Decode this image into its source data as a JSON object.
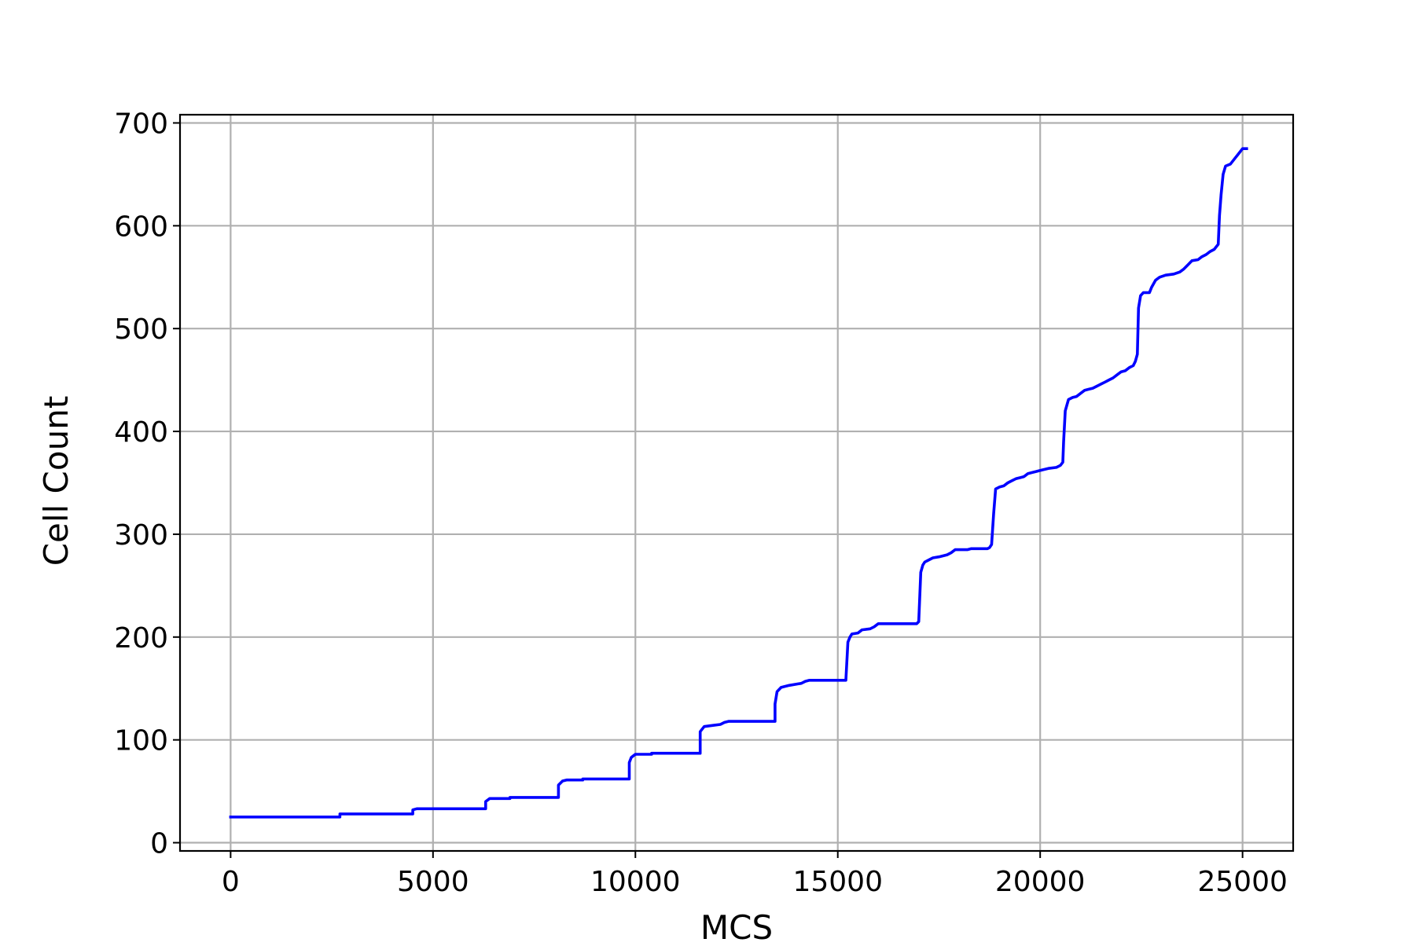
{
  "chart_data": {
    "type": "line",
    "title": "",
    "xlabel": "MCS",
    "ylabel": "Cell Count",
    "xlim": [
      -1250,
      26250
    ],
    "ylim": [
      -8,
      708
    ],
    "xticks": [
      0,
      5000,
      10000,
      15000,
      20000,
      25000
    ],
    "yticks": [
      0,
      100,
      200,
      300,
      400,
      500,
      600,
      700
    ],
    "grid": true,
    "legend": "none",
    "series": [
      {
        "color": "#0000ff",
        "step": true,
        "points": [
          [
            0,
            25
          ],
          [
            2700,
            25
          ],
          [
            2700,
            28
          ],
          [
            4500,
            28
          ],
          [
            4500,
            32
          ],
          [
            4600,
            33
          ],
          [
            6300,
            33
          ],
          [
            6300,
            40
          ],
          [
            6400,
            43
          ],
          [
            6900,
            43
          ],
          [
            6900,
            44
          ],
          [
            8100,
            44
          ],
          [
            8100,
            56
          ],
          [
            8200,
            60
          ],
          [
            8300,
            61
          ],
          [
            8700,
            61
          ],
          [
            8700,
            62
          ],
          [
            9850,
            62
          ],
          [
            9850,
            78
          ],
          [
            9900,
            83
          ],
          [
            10000,
            86
          ],
          [
            10400,
            86
          ],
          [
            10400,
            87
          ],
          [
            11600,
            87
          ],
          [
            11600,
            108
          ],
          [
            11700,
            113
          ],
          [
            11900,
            114
          ],
          [
            12100,
            115
          ],
          [
            12200,
            117
          ],
          [
            12300,
            118
          ],
          [
            13450,
            118
          ],
          [
            13450,
            135
          ],
          [
            13500,
            147
          ],
          [
            13600,
            151
          ],
          [
            13800,
            153
          ],
          [
            14100,
            155
          ],
          [
            14200,
            157
          ],
          [
            14300,
            158
          ],
          [
            15200,
            158
          ],
          [
            15250,
            195
          ],
          [
            15300,
            200
          ],
          [
            15350,
            203
          ],
          [
            15500,
            204
          ],
          [
            15600,
            207
          ],
          [
            15800,
            208
          ],
          [
            15900,
            210
          ],
          [
            16000,
            213
          ],
          [
            16950,
            213
          ],
          [
            17000,
            215
          ],
          [
            17050,
            263
          ],
          [
            17100,
            270
          ],
          [
            17150,
            273
          ],
          [
            17250,
            275
          ],
          [
            17350,
            277
          ],
          [
            17500,
            278
          ],
          [
            17700,
            280
          ],
          [
            17800,
            282
          ],
          [
            17900,
            285
          ],
          [
            18200,
            285
          ],
          [
            18300,
            286
          ],
          [
            18700,
            286
          ],
          [
            18750,
            287
          ],
          [
            18800,
            290
          ],
          [
            18850,
            320
          ],
          [
            18900,
            344
          ],
          [
            19000,
            346
          ],
          [
            19100,
            347
          ],
          [
            19200,
            350
          ],
          [
            19300,
            352
          ],
          [
            19400,
            354
          ],
          [
            19500,
            355
          ],
          [
            19600,
            356
          ],
          [
            19700,
            359
          ],
          [
            19800,
            360
          ],
          [
            19900,
            361
          ],
          [
            20000,
            362
          ],
          [
            20100,
            363
          ],
          [
            20200,
            364
          ],
          [
            20400,
            365
          ],
          [
            20500,
            367
          ],
          [
            20560,
            370
          ],
          [
            20580,
            390
          ],
          [
            20620,
            420
          ],
          [
            20700,
            431
          ],
          [
            20800,
            433
          ],
          [
            20900,
            434
          ],
          [
            21000,
            437
          ],
          [
            21100,
            440
          ],
          [
            21200,
            441
          ],
          [
            21300,
            442
          ],
          [
            21400,
            444
          ],
          [
            21500,
            446
          ],
          [
            21600,
            448
          ],
          [
            21700,
            450
          ],
          [
            21800,
            452
          ],
          [
            21900,
            455
          ],
          [
            22000,
            458
          ],
          [
            22100,
            459
          ],
          [
            22200,
            462
          ],
          [
            22300,
            464
          ],
          [
            22350,
            468
          ],
          [
            22400,
            475
          ],
          [
            22430,
            520
          ],
          [
            22480,
            532
          ],
          [
            22550,
            535
          ],
          [
            22700,
            535
          ],
          [
            22750,
            540
          ],
          [
            22850,
            547
          ],
          [
            22950,
            550
          ],
          [
            23100,
            552
          ],
          [
            23300,
            553
          ],
          [
            23450,
            555
          ],
          [
            23550,
            558
          ],
          [
            23650,
            562
          ],
          [
            23750,
            566
          ],
          [
            23900,
            567
          ],
          [
            24000,
            570
          ],
          [
            24100,
            572
          ],
          [
            24200,
            575
          ],
          [
            24300,
            577
          ],
          [
            24400,
            582
          ],
          [
            24430,
            610
          ],
          [
            24470,
            630
          ],
          [
            24520,
            650
          ],
          [
            24580,
            658
          ],
          [
            24700,
            660
          ],
          [
            24800,
            665
          ],
          [
            24900,
            670
          ],
          [
            25000,
            675
          ],
          [
            25100,
            675
          ]
        ]
      }
    ]
  }
}
